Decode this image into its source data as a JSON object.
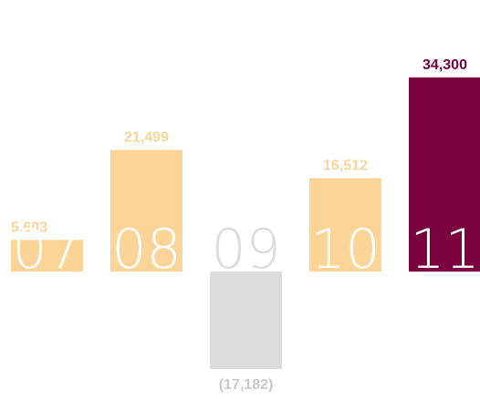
{
  "chart_data": {
    "type": "bar",
    "categories": [
      "07",
      "08",
      "09",
      "10",
      "11"
    ],
    "values": [
      5603,
      21499,
      -17182,
      16512,
      34300
    ],
    "value_labels": [
      "5,603",
      "21,499",
      "(17,182)",
      "16,512",
      "34,300"
    ],
    "colors": [
      "#fdd497",
      "#fdd497",
      "#dcdcdd",
      "#fdd497",
      "#7a0040"
    ]
  }
}
